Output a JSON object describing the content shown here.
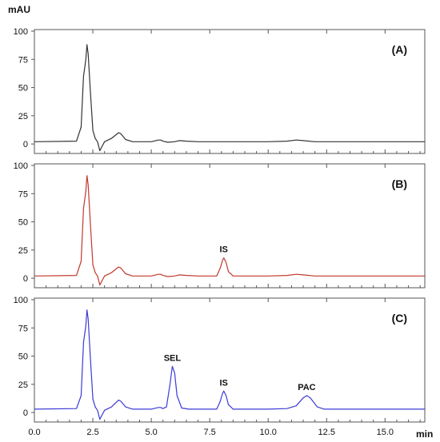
{
  "chart_data": {
    "type": "line",
    "y_unit": "mAU",
    "x_unit": "min",
    "x_ticks": [
      "0.0",
      "2.5",
      "5.0",
      "7.5",
      "10.0",
      "12.5",
      "15.0"
    ],
    "y_ticks": [
      "0",
      "25",
      "50",
      "75",
      "100"
    ],
    "xlim": [
      0,
      16.7
    ],
    "ylim": [
      -7,
      100
    ],
    "grid": false,
    "panels": [
      {
        "label": "(A)",
        "color": "#333333",
        "x": [
          0,
          1.8,
          2.0,
          2.1,
          2.2,
          2.25,
          2.3,
          2.4,
          2.5,
          2.6,
          2.7,
          2.8,
          2.9,
          3.0,
          3.3,
          3.6,
          3.7,
          3.9,
          4.2,
          5.0,
          5.3,
          5.4,
          5.5,
          5.7,
          6.0,
          6.2,
          6.5,
          7.0,
          8.0,
          9.0,
          10.0,
          10.8,
          11.2,
          11.5,
          12.0,
          13.0,
          16.7
        ],
        "values": [
          2,
          2.5,
          15,
          60,
          75,
          88,
          80,
          45,
          12,
          5,
          2,
          -6,
          -2,
          2,
          5,
          10,
          9,
          4,
          2,
          2,
          3.5,
          3.5,
          2.5,
          1.5,
          2,
          3,
          2.5,
          2,
          2,
          2,
          2,
          2.5,
          3.5,
          3,
          2,
          2,
          2
        ],
        "annotations": []
      },
      {
        "label": "(B)",
        "color": "#c0392b",
        "x": [
          0,
          1.8,
          2.0,
          2.1,
          2.2,
          2.25,
          2.3,
          2.4,
          2.5,
          2.6,
          2.7,
          2.8,
          2.9,
          3.0,
          3.3,
          3.6,
          3.7,
          3.9,
          4.2,
          5.0,
          5.3,
          5.4,
          5.5,
          5.7,
          6.0,
          6.2,
          6.5,
          7.0,
          7.8,
          7.95,
          8.05,
          8.1,
          8.2,
          8.3,
          8.5,
          9.0,
          10.0,
          10.8,
          11.2,
          11.5,
          12.0,
          13.0,
          16.7
        ],
        "values": [
          2,
          2.5,
          15,
          62,
          77,
          91,
          83,
          47,
          12,
          5,
          2,
          -6,
          -2,
          2,
          5,
          10,
          9,
          4,
          2,
          2,
          3.5,
          3.5,
          2.5,
          1.5,
          2,
          3,
          2.5,
          2,
          2,
          9,
          16,
          18,
          14,
          6,
          2,
          2,
          2,
          2.5,
          3.5,
          3,
          2,
          2,
          2
        ],
        "annotations": [
          {
            "text": "IS",
            "x": 8.1,
            "y": 18
          }
        ]
      },
      {
        "label": "(C)",
        "color": "#3b3bd6",
        "x": [
          0,
          1.8,
          2.0,
          2.1,
          2.2,
          2.25,
          2.3,
          2.4,
          2.5,
          2.6,
          2.7,
          2.8,
          2.9,
          3.0,
          3.3,
          3.6,
          3.7,
          3.9,
          4.2,
          5.0,
          5.3,
          5.4,
          5.5,
          5.65,
          5.8,
          5.9,
          6.0,
          6.1,
          6.3,
          6.6,
          7.0,
          7.8,
          7.95,
          8.05,
          8.1,
          8.2,
          8.3,
          8.5,
          9.0,
          10.0,
          10.8,
          11.2,
          11.5,
          11.65,
          11.8,
          12.1,
          12.4,
          13.0,
          16.7
        ],
        "values": [
          3,
          3.5,
          15,
          62,
          77,
          91,
          83,
          47,
          12,
          5,
          2,
          -6,
          -2,
          2,
          5,
          11,
          10,
          5,
          3,
          3,
          4.5,
          4.5,
          3.5,
          5,
          25,
          41,
          35,
          15,
          4,
          3,
          3,
          3,
          10,
          17,
          19,
          15,
          7,
          3,
          3,
          3,
          3.5,
          6,
          13,
          15,
          13,
          5,
          3,
          3,
          3
        ],
        "annotations": [
          {
            "text": "SEL",
            "x": 5.9,
            "y": 41
          },
          {
            "text": "IS",
            "x": 8.1,
            "y": 19
          },
          {
            "text": "PAC",
            "x": 11.65,
            "y": 15
          }
        ]
      }
    ]
  }
}
